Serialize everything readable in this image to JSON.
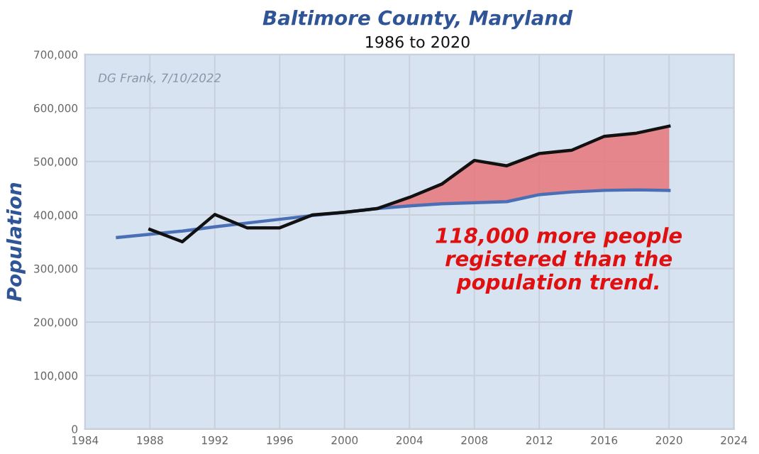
{
  "chart_data": {
    "type": "line",
    "title": "Baltimore County, Maryland",
    "subtitle": "1986 to 2020",
    "ylabel": "Population",
    "series": [
      {
        "color": "#4a6fb5",
        "x": [
          1986,
          1988,
          1990,
          1992,
          1994,
          1996,
          1998,
          2000,
          2002,
          2004,
          2006,
          2008,
          2010,
          2012,
          2014,
          2016,
          2018,
          2020
        ],
        "values": [
          358000,
          364000,
          370000,
          378000,
          385000,
          392000,
          399000,
          405000,
          412000,
          417000,
          421000,
          423000,
          425000,
          438000,
          443000,
          446000,
          447000,
          446000
        ]
      },
      {
        "color": "#111111",
        "x": [
          1988,
          1990,
          1992,
          1994,
          1996,
          1998,
          2000,
          2002,
          2004,
          2006,
          2008,
          2010,
          2012,
          2014,
          2016,
          2018,
          2020
        ],
        "values": [
          373000,
          350000,
          401000,
          376000,
          376000,
          400000,
          405000,
          412000,
          433000,
          458000,
          502000,
          492000,
          515000,
          521000,
          547000,
          553000,
          566000
        ],
        "lower": [
          null,
          null,
          null,
          null,
          null,
          null,
          null,
          412000,
          417000,
          421000,
          423000,
          425000,
          438000,
          443000,
          446000,
          447000,
          446000
        ],
        "upper": [
          null,
          null,
          null,
          null,
          null,
          null,
          null,
          412000,
          433000,
          458000,
          502000,
          492000,
          515000,
          521000,
          547000,
          553000,
          566000
        ]
      }
    ],
    "xlim": [
      1984,
      2024
    ],
    "xticks": [
      1984,
      1988,
      1992,
      1996,
      2000,
      2004,
      2008,
      2012,
      2016,
      2020,
      2024
    ],
    "ylim": [
      0,
      700000
    ],
    "yticks": [
      {
        "value": 0,
        "label": "0"
      },
      {
        "value": 100000,
        "label": "100,000"
      },
      {
        "value": 200000,
        "label": "200,000"
      },
      {
        "value": 300000,
        "label": "300,000"
      },
      {
        "value": 400000,
        "label": "400,000"
      },
      {
        "value": 500000,
        "label": "500,000"
      },
      {
        "value": 600000,
        "label": "600,000"
      },
      {
        "value": 700000,
        "label": "700,000"
      }
    ],
    "grid": true,
    "legend": false,
    "marker": "none",
    "line_style": "solid",
    "annotations": [
      "DG Frank, 7/10/2022",
      "118,000 more people registered than the population trend."
    ]
  }
}
